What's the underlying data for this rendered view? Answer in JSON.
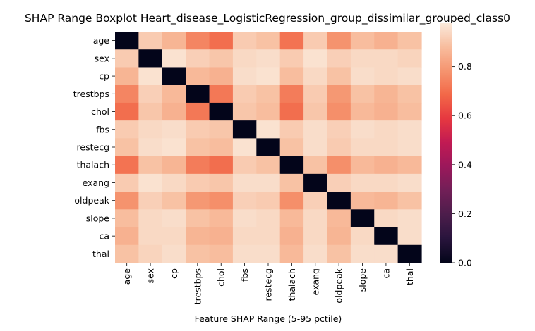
{
  "chart_data": {
    "type": "heatmap",
    "title": "SHAP Range Boxplot Heart_disease_LogisticRegression_group_dissimilar_grouped_class0",
    "xlabel": "Feature SHAP Range (5-95 pctile)",
    "ylabel": "",
    "x_categories": [
      "age",
      "sex",
      "cp",
      "trestbps",
      "chol",
      "fbs",
      "restecg",
      "thalach",
      "exang",
      "oldpeak",
      "slope",
      "ca",
      "thal"
    ],
    "y_categories": [
      "age",
      "sex",
      "cp",
      "trestbps",
      "chol",
      "fbs",
      "restecg",
      "thalach",
      "exang",
      "oldpeak",
      "slope",
      "ca",
      "thal"
    ],
    "colorbar": {
      "min": 0.0,
      "max": 0.98,
      "ticks": [
        "0.0",
        "0.2",
        "0.4",
        "0.6",
        "0.8"
      ],
      "tick_values": [
        0.0,
        0.2,
        0.4,
        0.6,
        0.8
      ],
      "colormap": "rocket"
    },
    "values": [
      [
        0.0,
        0.91,
        0.86,
        0.75,
        0.7,
        0.91,
        0.89,
        0.71,
        0.91,
        0.78,
        0.88,
        0.85,
        0.89
      ],
      [
        0.91,
        0.0,
        0.96,
        0.92,
        0.9,
        0.94,
        0.95,
        0.91,
        0.96,
        0.92,
        0.94,
        0.94,
        0.93
      ],
      [
        0.86,
        0.96,
        0.0,
        0.87,
        0.85,
        0.95,
        0.96,
        0.88,
        0.94,
        0.89,
        0.95,
        0.94,
        0.95
      ],
      [
        0.75,
        0.92,
        0.87,
        0.0,
        0.72,
        0.91,
        0.89,
        0.73,
        0.91,
        0.79,
        0.89,
        0.86,
        0.89
      ],
      [
        0.7,
        0.9,
        0.85,
        0.72,
        0.0,
        0.9,
        0.88,
        0.7,
        0.9,
        0.77,
        0.87,
        0.85,
        0.88
      ],
      [
        0.91,
        0.94,
        0.95,
        0.91,
        0.9,
        0.0,
        0.96,
        0.91,
        0.95,
        0.92,
        0.95,
        0.94,
        0.95
      ],
      [
        0.89,
        0.95,
        0.96,
        0.89,
        0.88,
        0.96,
        0.0,
        0.89,
        0.95,
        0.91,
        0.94,
        0.94,
        0.95
      ],
      [
        0.71,
        0.89,
        0.86,
        0.73,
        0.7,
        0.91,
        0.89,
        0.0,
        0.89,
        0.77,
        0.87,
        0.85,
        0.87
      ],
      [
        0.91,
        0.96,
        0.94,
        0.91,
        0.9,
        0.95,
        0.95,
        0.89,
        0.0,
        0.92,
        0.94,
        0.94,
        0.95
      ],
      [
        0.78,
        0.92,
        0.89,
        0.79,
        0.77,
        0.92,
        0.91,
        0.77,
        0.92,
        0.0,
        0.87,
        0.86,
        0.89
      ],
      [
        0.88,
        0.94,
        0.95,
        0.89,
        0.87,
        0.95,
        0.94,
        0.87,
        0.94,
        0.87,
        0.0,
        0.94,
        0.95
      ],
      [
        0.85,
        0.94,
        0.94,
        0.86,
        0.85,
        0.94,
        0.94,
        0.85,
        0.94,
        0.86,
        0.94,
        0.0,
        0.95
      ],
      [
        0.89,
        0.93,
        0.95,
        0.89,
        0.88,
        0.95,
        0.95,
        0.87,
        0.95,
        0.89,
        0.95,
        0.95,
        0.0
      ]
    ]
  }
}
